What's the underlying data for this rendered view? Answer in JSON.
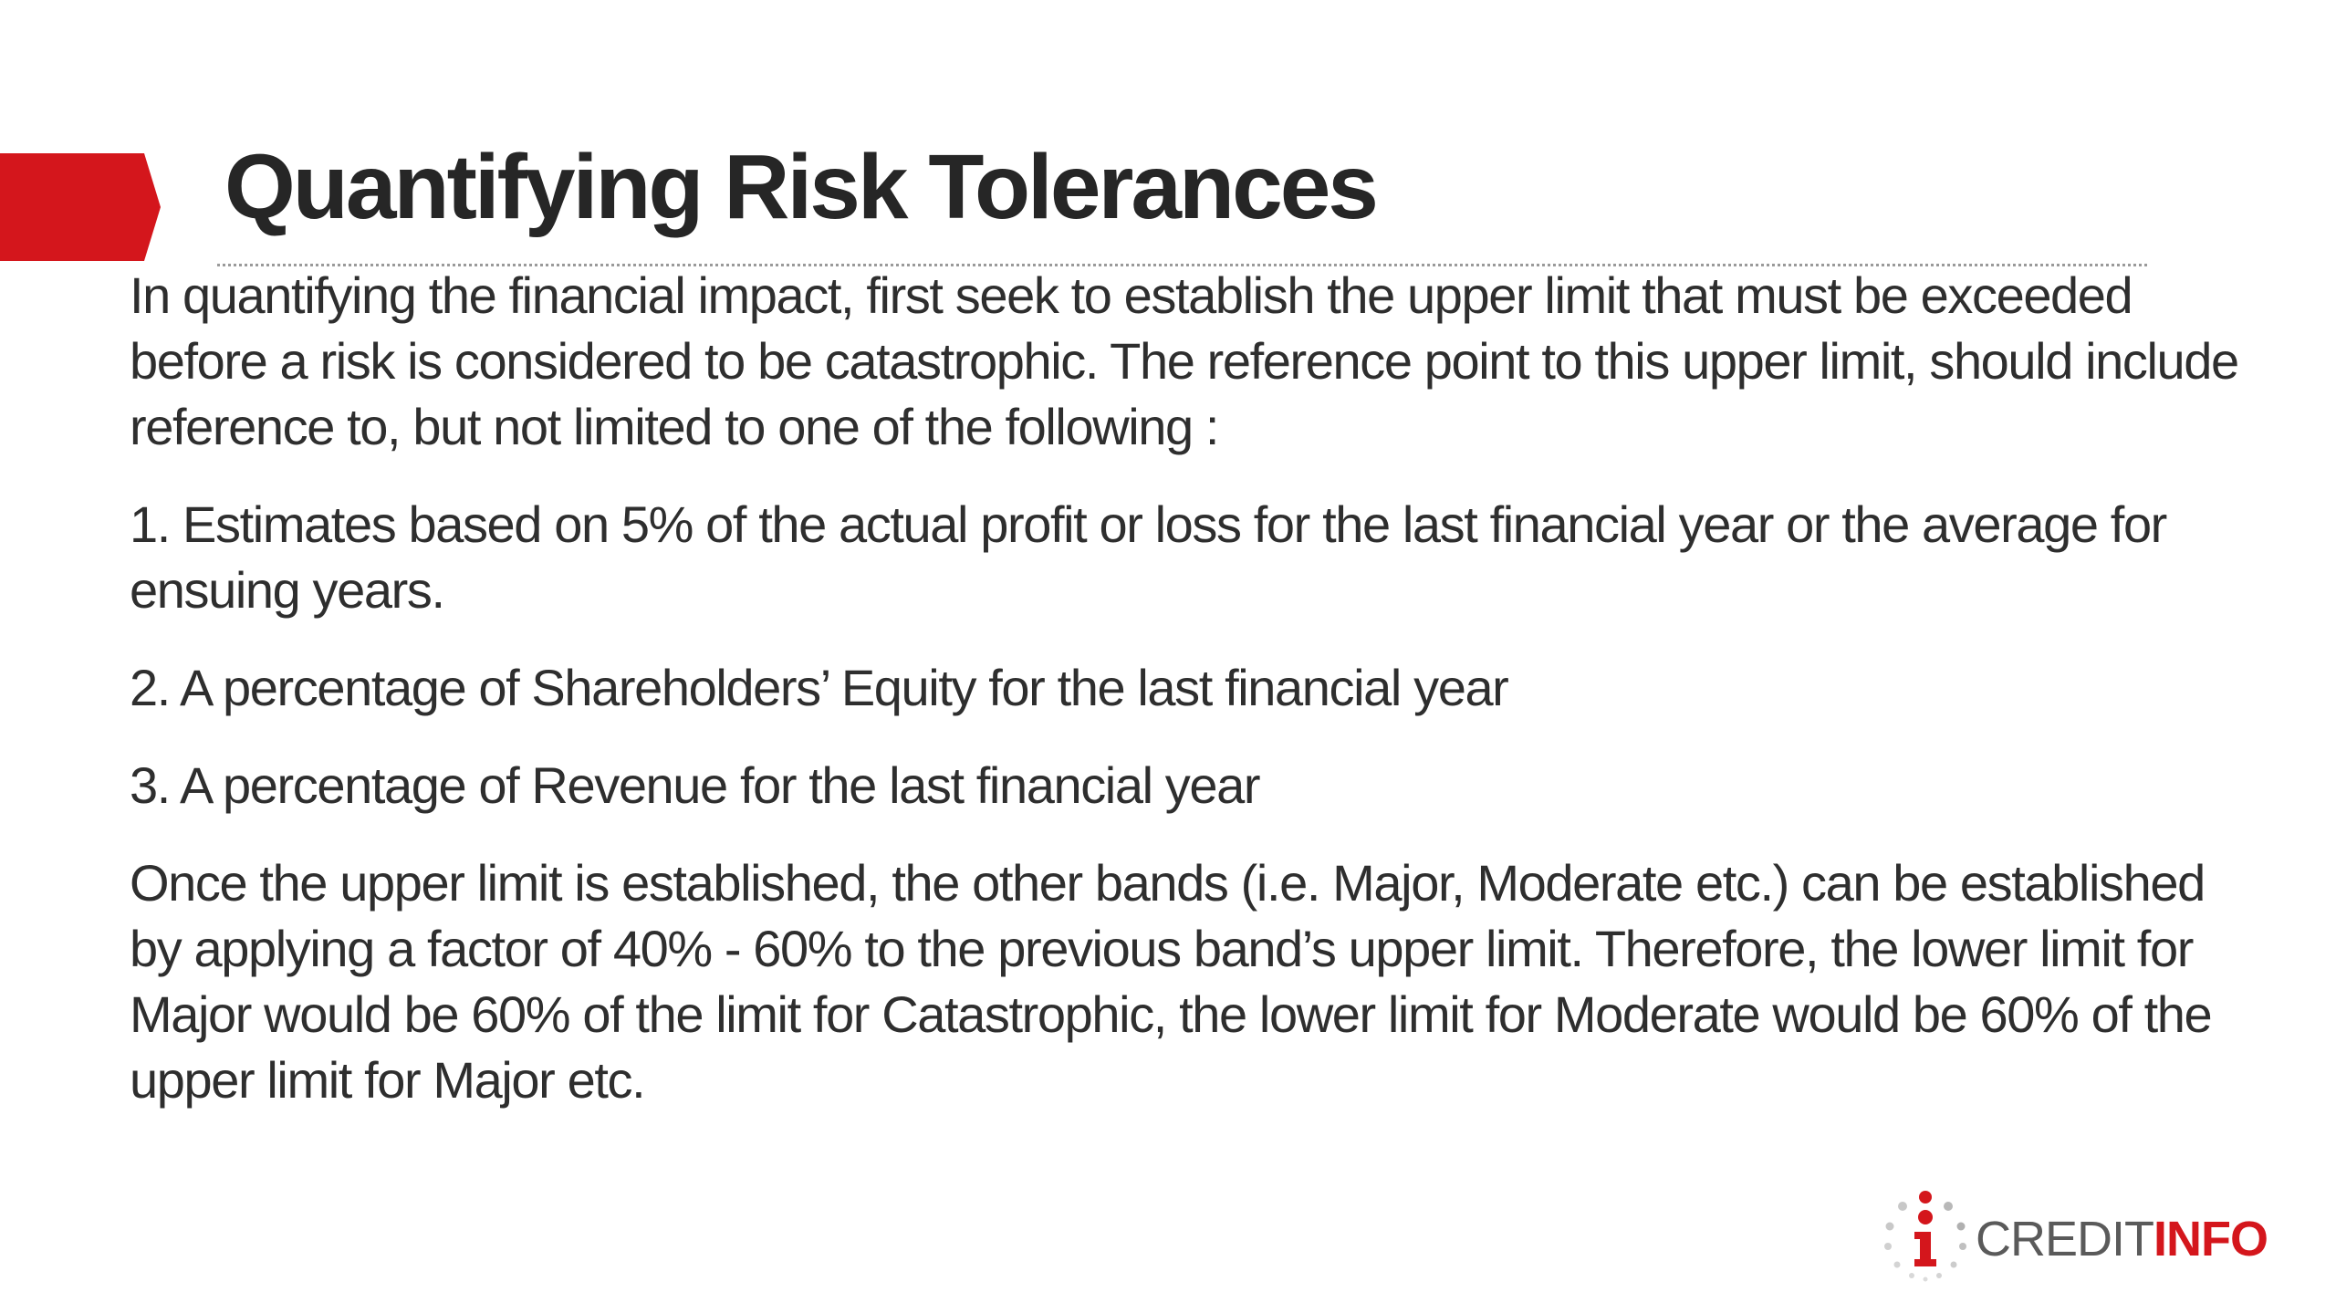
{
  "slide": {
    "title": "Quantifying Risk Tolerances",
    "paragraphs": [
      "In quantifying the financial impact, first seek to establish the upper limit that must be exceeded before a risk is considered to be catastrophic. The reference point to this upper limit, should include reference to, but not limited to one of the following :",
      "1. Estimates based on 5% of the actual profit or loss for the last financial year or the average for ensuing years.",
      "2. A percentage of Shareholders’ Equity for the last financial year",
      "3. A percentage of Revenue for the last financial year",
      "Once the upper limit is established, the other bands (i.e. Major, Moderate etc.) can be established by applying a factor of 40% - 60% to the previous band’s upper limit. Therefore, the lower limit for Major would be 60% of the limit for Catastrophic, the lower limit for Moderate would be 60% of the upper limit for Major etc."
    ]
  },
  "logo": {
    "part1": "CREDIT",
    "part2": "INFO",
    "mark_icon": "creditinfo-i-logo-icon"
  },
  "colors": {
    "accent": "#d4161c",
    "text": "#2e2e2e",
    "logo_gray": "#5a5a5a"
  }
}
